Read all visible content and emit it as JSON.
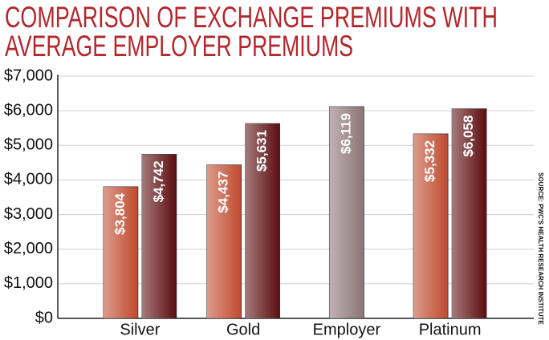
{
  "chart_data": {
    "type": "bar",
    "title": [
      "COMPARISON OF EXCHANGE PREMIUMS WITH",
      "AVERAGE EMPLOYER PREMIUMS"
    ],
    "source": "SOURCE: PWC'S HEALTH RESEARCH INSTITUTE",
    "categories": [
      "Silver",
      "Gold",
      "Employer",
      "Platinum"
    ],
    "series": [
      {
        "color": "#c04a2e",
        "values": [
          3804,
          4437,
          null,
          5332
        ],
        "value_labels": [
          "$3,804",
          "$4,437",
          null,
          "$5,332"
        ]
      },
      {
        "color": "#5c0d0f",
        "values": [
          4742,
          5631,
          null,
          6058
        ],
        "value_labels": [
          "$4,742",
          "$5,631",
          null,
          "$6,058"
        ]
      },
      {
        "color": "#8c7476",
        "values": [
          null,
          null,
          6119,
          null
        ],
        "value_labels": [
          null,
          null,
          "$6,119",
          null
        ]
      }
    ],
    "ylim": [
      0,
      7000
    ],
    "yticks": [
      {
        "value": 0,
        "label": "$0"
      },
      {
        "value": 1000,
        "label": "$1,000"
      },
      {
        "value": 2000,
        "label": "$2,000"
      },
      {
        "value": 3000,
        "label": "$3,000"
      },
      {
        "value": 4000,
        "label": "$4,000"
      },
      {
        "value": 5000,
        "label": "$5,000"
      },
      {
        "value": 6000,
        "label": "$6,000"
      },
      {
        "value": 7000,
        "label": "$7,000"
      }
    ],
    "grid": true
  }
}
